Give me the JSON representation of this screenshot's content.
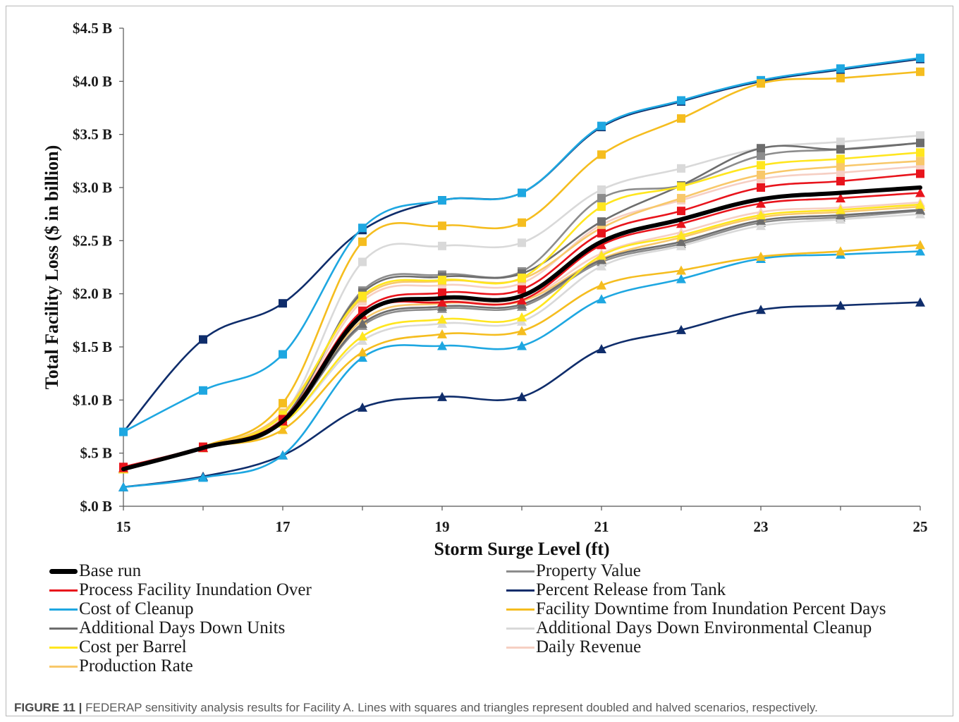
{
  "chart_data": {
    "type": "line",
    "title": "",
    "xlabel": "Storm Surge Level (ft)",
    "ylabel": "Total Facility Loss ($ in billion)",
    "x": [
      15,
      16,
      17,
      18,
      19,
      20,
      21,
      22,
      23,
      24,
      25
    ],
    "x_ticks": [
      "15",
      "17",
      "19",
      "21",
      "23",
      "25"
    ],
    "x_tick_values": [
      15,
      17,
      19,
      21,
      23,
      25
    ],
    "y_ticks": [
      "$.0 B",
      "$.5 B",
      "$1.0 B",
      "$1.5 B",
      "$2.0 B",
      "$2.5 B",
      "$3.0 B",
      "$3.5 B",
      "$4.0 B",
      "$4.5 B"
    ],
    "y_tick_values": [
      0,
      0.5,
      1.0,
      1.5,
      2.0,
      2.5,
      3.0,
      3.5,
      4.0,
      4.5
    ],
    "xlim": [
      15,
      25
    ],
    "ylim": [
      0,
      4.5
    ],
    "grid": false,
    "legend_position": "bottom",
    "series": [
      {
        "name": "Property Value",
        "color": "#8c8c8c",
        "marker": "square",
        "values": [
          0.35,
          0.55,
          0.8,
          2.03,
          2.18,
          2.21,
          2.9,
          3.02,
          3.3,
          3.36,
          3.42
        ]
      },
      {
        "name": "Property Value",
        "color": "#8c8c8c",
        "marker": "triangle",
        "values": [
          0.35,
          0.55,
          0.8,
          1.7,
          1.86,
          1.88,
          2.3,
          2.47,
          2.67,
          2.72,
          2.78
        ]
      },
      {
        "name": "Percent Release from Tank",
        "color": "#0f2d6b",
        "marker": "square",
        "values": [
          0.7,
          1.57,
          1.91,
          2.6,
          2.88,
          2.95,
          3.57,
          3.81,
          4.0,
          4.11,
          4.21
        ]
      },
      {
        "name": "Percent Release from Tank",
        "color": "#0f2d6b",
        "marker": "triangle",
        "values": [
          0.18,
          0.28,
          0.48,
          0.93,
          1.03,
          1.03,
          1.48,
          1.66,
          1.85,
          1.89,
          1.92
        ]
      },
      {
        "name": "Cost of Cleanup",
        "color": "#1ea7e1",
        "marker": "square",
        "values": [
          0.7,
          1.09,
          1.43,
          2.62,
          2.88,
          2.95,
          3.58,
          3.82,
          4.01,
          4.12,
          4.22
        ]
      },
      {
        "name": "Cost of Cleanup",
        "color": "#1ea7e1",
        "marker": "triangle",
        "values": [
          0.18,
          0.27,
          0.48,
          1.4,
          1.51,
          1.51,
          1.95,
          2.14,
          2.33,
          2.37,
          2.4
        ]
      },
      {
        "name": "Facility Downtime from Inundation Percent Days",
        "color": "#f5bd1f",
        "marker": "square",
        "values": [
          0.36,
          0.56,
          0.97,
          2.49,
          2.64,
          2.67,
          3.31,
          3.65,
          3.98,
          4.03,
          4.09
        ]
      },
      {
        "name": "Facility Downtime from Inundation Percent Days",
        "color": "#f5bd1f",
        "marker": "triangle",
        "values": [
          0.35,
          0.55,
          0.72,
          1.45,
          1.62,
          1.65,
          2.08,
          2.22,
          2.35,
          2.4,
          2.46
        ]
      },
      {
        "name": "Additional Days Down Environmental Cleanup",
        "color": "#d9d9d9",
        "marker": "square",
        "values": [
          0.35,
          0.55,
          0.85,
          2.3,
          2.45,
          2.48,
          2.98,
          3.18,
          3.37,
          3.43,
          3.49
        ]
      },
      {
        "name": "Additional Days Down Environmental Cleanup",
        "color": "#d9d9d9",
        "marker": "triangle",
        "values": [
          0.35,
          0.55,
          0.78,
          1.56,
          1.72,
          1.74,
          2.26,
          2.45,
          2.64,
          2.7,
          2.75
        ]
      },
      {
        "name": "Daily Revenue",
        "color": "#f6cfc3",
        "marker": "square",
        "values": [
          0.35,
          0.55,
          0.82,
          1.93,
          2.08,
          2.1,
          2.65,
          2.88,
          3.08,
          3.14,
          3.2
        ]
      },
      {
        "name": "Daily Revenue",
        "color": "#f6cfc3",
        "marker": "triangle",
        "values": [
          0.35,
          0.55,
          0.8,
          1.8,
          1.93,
          1.94,
          2.38,
          2.58,
          2.77,
          2.81,
          2.86
        ]
      },
      {
        "name": "Production Rate",
        "color": "#f8c86a",
        "marker": "square",
        "values": [
          0.35,
          0.55,
          0.88,
          1.96,
          2.12,
          2.14,
          2.62,
          2.9,
          3.12,
          3.2,
          3.25
        ]
      },
      {
        "name": "Production Rate",
        "color": "#f8c86a",
        "marker": "triangle",
        "values": [
          0.35,
          0.55,
          0.82,
          1.75,
          1.91,
          1.93,
          2.33,
          2.53,
          2.72,
          2.77,
          2.82
        ]
      },
      {
        "name": "Additional Days Down Units",
        "color": "#6d6d6d",
        "marker": "square",
        "values": [
          0.35,
          0.55,
          0.82,
          2.01,
          2.16,
          2.19,
          2.68,
          3.02,
          3.37,
          3.36,
          3.42
        ]
      },
      {
        "name": "Additional Days Down Units",
        "color": "#6d6d6d",
        "marker": "triangle",
        "values": [
          0.35,
          0.55,
          0.79,
          1.72,
          1.88,
          1.9,
          2.32,
          2.49,
          2.69,
          2.74,
          2.79
        ]
      },
      {
        "name": "Cost per Barrel",
        "color": "#ffe61f",
        "marker": "square",
        "values": [
          0.35,
          0.55,
          0.86,
          1.98,
          2.13,
          2.15,
          2.82,
          3.01,
          3.21,
          3.27,
          3.33
        ]
      },
      {
        "name": "Cost per Barrel",
        "color": "#ffe61f",
        "marker": "triangle",
        "values": [
          0.35,
          0.55,
          0.78,
          1.6,
          1.76,
          1.78,
          2.36,
          2.55,
          2.74,
          2.79,
          2.84
        ]
      },
      {
        "name": "Process Facility Inundation Over",
        "color": "#e8141c",
        "marker": "square",
        "values": [
          0.37,
          0.56,
          0.82,
          1.84,
          2.01,
          2.04,
          2.57,
          2.78,
          3.0,
          3.06,
          3.13
        ]
      },
      {
        "name": "Process Facility Inundation Over",
        "color": "#e8141c",
        "marker": "triangle",
        "values": [
          0.36,
          0.55,
          0.8,
          1.8,
          1.92,
          1.94,
          2.46,
          2.66,
          2.85,
          2.9,
          2.95
        ]
      },
      {
        "name": "Base run",
        "color": "#000000",
        "marker": "none",
        "width": 6,
        "values": [
          0.35,
          0.55,
          0.8,
          1.8,
          1.96,
          1.98,
          2.49,
          2.7,
          2.89,
          2.95,
          3.0
        ]
      }
    ]
  },
  "legend": [
    {
      "label": "Base run",
      "color": "#000000",
      "thick": true
    },
    {
      "label": "Property Value",
      "color": "#8c8c8c"
    },
    {
      "label": "Process Facility Inundation Over",
      "color": "#e8141c"
    },
    {
      "label": "Percent Release from Tank",
      "color": "#0f2d6b"
    },
    {
      "label": "Cost of Cleanup",
      "color": "#1ea7e1"
    },
    {
      "label": "Facility Downtime from Inundation Percent Days",
      "color": "#f5bd1f"
    },
    {
      "label": "Additional Days Down Units",
      "color": "#6d6d6d"
    },
    {
      "label": "Additional Days Down Environmental Cleanup",
      "color": "#d9d9d9"
    },
    {
      "label": "Cost per Barrel",
      "color": "#ffe61f"
    },
    {
      "label": "Daily Revenue",
      "color": "#f6cfc3"
    },
    {
      "label": "Production Rate",
      "color": "#f8c86a"
    }
  ],
  "caption": {
    "figure_label": "FIGURE 11 |",
    "text": " FEDERAP sensitivity analysis results for Facility A. Lines with squares and triangles represent doubled and halved scenarios, respectively."
  }
}
